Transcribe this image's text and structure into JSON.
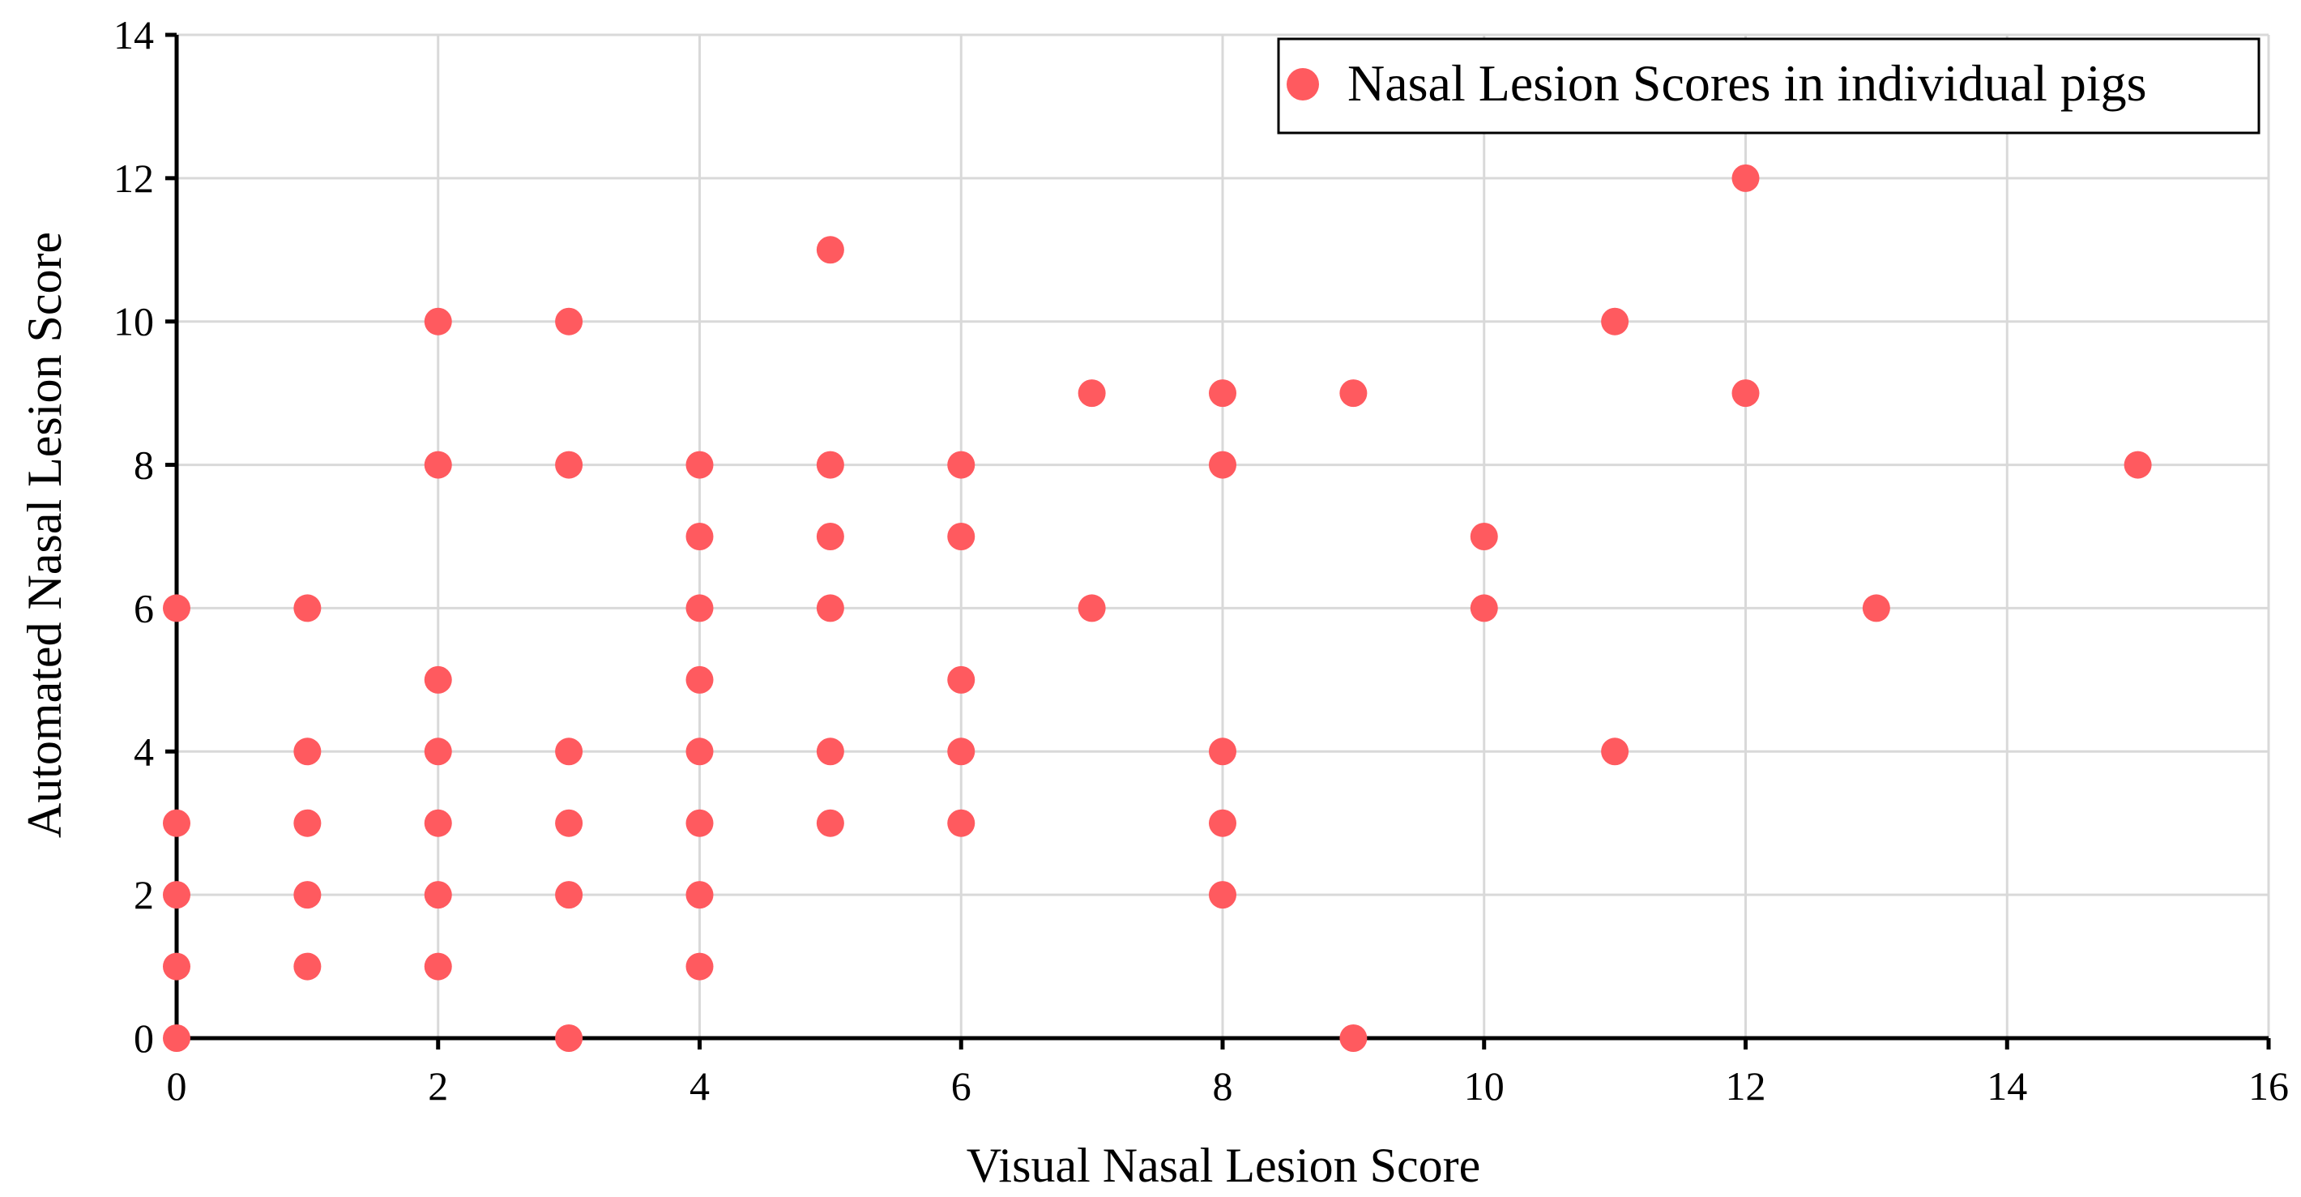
{
  "chart_data": {
    "type": "scatter",
    "title": "",
    "xlabel": "Visual Nasal Lesion Score",
    "ylabel": "Automated Nasal Lesion Score",
    "xlim": [
      0,
      16
    ],
    "ylim": [
      0,
      14
    ],
    "x_ticks": [
      0,
      2,
      4,
      6,
      8,
      10,
      12,
      14,
      16
    ],
    "y_ticks": [
      0,
      2,
      4,
      6,
      8,
      10,
      12,
      14
    ],
    "x_tick_labels": [
      "0",
      "2",
      "4",
      "6",
      "8",
      "10",
      "12",
      "14",
      "16"
    ],
    "y_tick_labels": [
      "0",
      "2",
      "4",
      "6",
      "8",
      "10",
      "12",
      "14"
    ],
    "grid": true,
    "legend_position": "top-right",
    "series": [
      {
        "name": "Nasal Lesion Scores in individual pigs",
        "color": "#ff5a5f",
        "points": [
          [
            0,
            0
          ],
          [
            0,
            1
          ],
          [
            0,
            2
          ],
          [
            0,
            3
          ],
          [
            0,
            6
          ],
          [
            1,
            1
          ],
          [
            1,
            2
          ],
          [
            1,
            3
          ],
          [
            1,
            4
          ],
          [
            1,
            6
          ],
          [
            2,
            1
          ],
          [
            2,
            2
          ],
          [
            2,
            3
          ],
          [
            2,
            4
          ],
          [
            2,
            5
          ],
          [
            2,
            8
          ],
          [
            2,
            10
          ],
          [
            3,
            0
          ],
          [
            3,
            2
          ],
          [
            3,
            3
          ],
          [
            3,
            4
          ],
          [
            3,
            8
          ],
          [
            3,
            10
          ],
          [
            4,
            1
          ],
          [
            4,
            2
          ],
          [
            4,
            3
          ],
          [
            4,
            4
          ],
          [
            4,
            5
          ],
          [
            4,
            6
          ],
          [
            4,
            7
          ],
          [
            4,
            8
          ],
          [
            5,
            3
          ],
          [
            5,
            4
          ],
          [
            5,
            6
          ],
          [
            5,
            7
          ],
          [
            5,
            8
          ],
          [
            5,
            11
          ],
          [
            6,
            3
          ],
          [
            6,
            4
          ],
          [
            6,
            5
          ],
          [
            6,
            7
          ],
          [
            6,
            8
          ],
          [
            7,
            6
          ],
          [
            7,
            9
          ],
          [
            8,
            2
          ],
          [
            8,
            3
          ],
          [
            8,
            4
          ],
          [
            8,
            8
          ],
          [
            8,
            9
          ],
          [
            9,
            0
          ],
          [
            9,
            9
          ],
          [
            10,
            6
          ],
          [
            10,
            7
          ],
          [
            11,
            4
          ],
          [
            11,
            10
          ],
          [
            12,
            9
          ],
          [
            12,
            12
          ],
          [
            13,
            6
          ],
          [
            15,
            8
          ]
        ]
      }
    ]
  }
}
